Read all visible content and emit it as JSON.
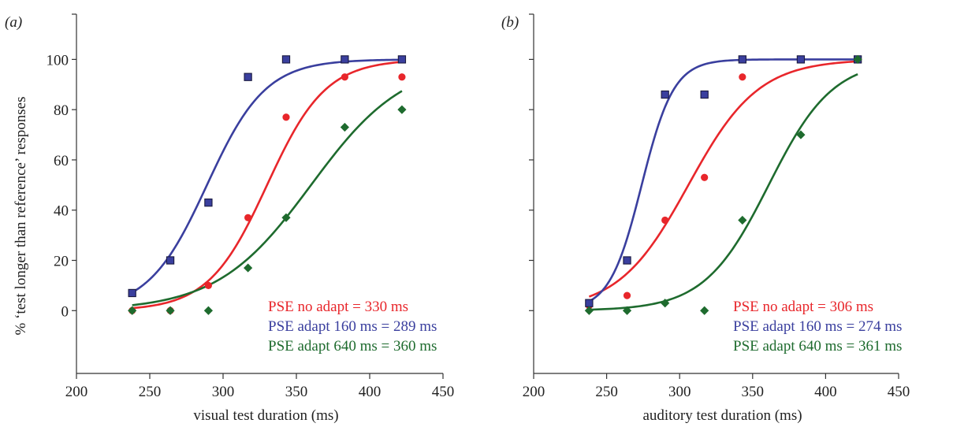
{
  "chart_data": [
    {
      "type": "scatter",
      "panel_label": "(a)",
      "xlabel": "visual test duration (ms)",
      "ylabel": "% ‘test longer than reference’ responses",
      "xlim": [
        200,
        450
      ],
      "ylim": [
        -25,
        118
      ],
      "x_ticks": [
        200,
        250,
        300,
        350,
        400,
        450
      ],
      "y_ticks": [
        0,
        20,
        40,
        60,
        80,
        100
      ],
      "grid": false,
      "legend_position": "bottom-right",
      "series": [
        {
          "name": "PSE no adapt = 330 ms",
          "color": "#e8262b",
          "marker": "circle",
          "pse": 330,
          "slope": 20,
          "x": [
            238,
            264,
            290,
            317,
            343,
            383,
            422
          ],
          "y": [
            0,
            0,
            10,
            37,
            77,
            93,
            93
          ]
        },
        {
          "name": "PSE adapt 160 ms = 289 ms",
          "color": "#3a3f9e",
          "marker": "square",
          "pse": 289,
          "slope": 20,
          "x": [
            238,
            264,
            290,
            317,
            343,
            383,
            422
          ],
          "y": [
            7,
            20,
            43,
            93,
            100,
            100,
            100
          ]
        },
        {
          "name": "PSE adapt 640 ms = 360 ms",
          "color": "#1e6b2e",
          "marker": "diamond",
          "pse": 360,
          "slope": 32,
          "x": [
            238,
            264,
            290,
            317,
            343,
            383,
            422
          ],
          "y": [
            0,
            0,
            0,
            17,
            37,
            73,
            80
          ]
        }
      ],
      "legend_texts": [
        "PSE no adapt = 330 ms",
        "PSE adapt 160 ms = 289 ms",
        "PSE adapt 640 ms = 360 ms"
      ]
    },
    {
      "type": "scatter",
      "panel_label": "(b)",
      "xlabel": "auditory test duration (ms)",
      "ylabel": "",
      "xlim": [
        200,
        450
      ],
      "ylim": [
        -25,
        118
      ],
      "x_ticks": [
        200,
        250,
        300,
        350,
        400,
        450
      ],
      "y_ticks": [
        0,
        20,
        40,
        60,
        80,
        100
      ],
      "grid": false,
      "legend_position": "bottom-right",
      "series": [
        {
          "name": "PSE no adapt = 306 ms",
          "color": "#e8262b",
          "marker": "circle",
          "pse": 306,
          "slope": 24,
          "x": [
            238,
            264,
            290,
            317,
            343,
            383,
            422
          ],
          "y": [
            2,
            6,
            36,
            53,
            93,
            100,
            100
          ]
        },
        {
          "name": "PSE adapt 160 ms = 274 ms",
          "color": "#3a3f9e",
          "marker": "square",
          "pse": 274,
          "slope": 11,
          "x": [
            238,
            264,
            290,
            317,
            343,
            383,
            422
          ],
          "y": [
            3,
            20,
            86,
            86,
            100,
            100,
            100
          ]
        },
        {
          "name": "PSE adapt 640 ms = 361 ms",
          "color": "#1e6b2e",
          "marker": "diamond",
          "pse": 361,
          "slope": 22,
          "x": [
            238,
            264,
            290,
            317,
            343,
            383,
            422
          ],
          "y": [
            0,
            0,
            3,
            0,
            36,
            70,
            100
          ]
        }
      ],
      "legend_texts": [
        "PSE no adapt = 306 ms",
        "PSE adapt 160 ms = 274 ms",
        "PSE adapt 640 ms = 361 ms"
      ]
    }
  ]
}
